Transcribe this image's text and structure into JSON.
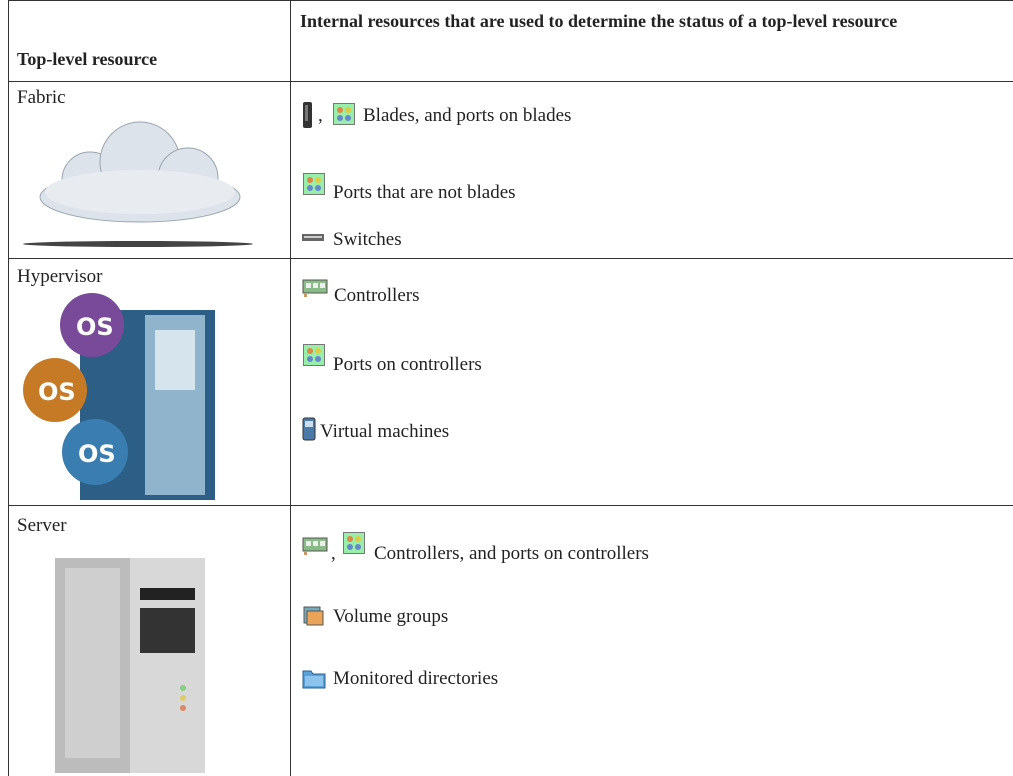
{
  "table": {
    "header": [
      "Top-level resource",
      "Internal resources that are used to determine the status of a top-level resource"
    ],
    "rows": [
      {
        "resource": "Fabric",
        "items": [
          {
            "separator": ",",
            "text": "Blades, and ports on blades"
          },
          {
            "text": "Ports that are not blades"
          },
          {
            "text": "Switches"
          }
        ]
      },
      {
        "resource": "Hypervisor",
        "items": [
          {
            "text": "Controllers"
          },
          {
            "text": "Ports on controllers"
          },
          {
            "text": "Virtual machines"
          }
        ]
      },
      {
        "resource": "Server",
        "items": [
          {
            "separator": ",",
            "text": "Controllers, and ports on controllers"
          },
          {
            "text": "Volume groups"
          },
          {
            "text": "Monitored directories"
          }
        ]
      }
    ]
  }
}
